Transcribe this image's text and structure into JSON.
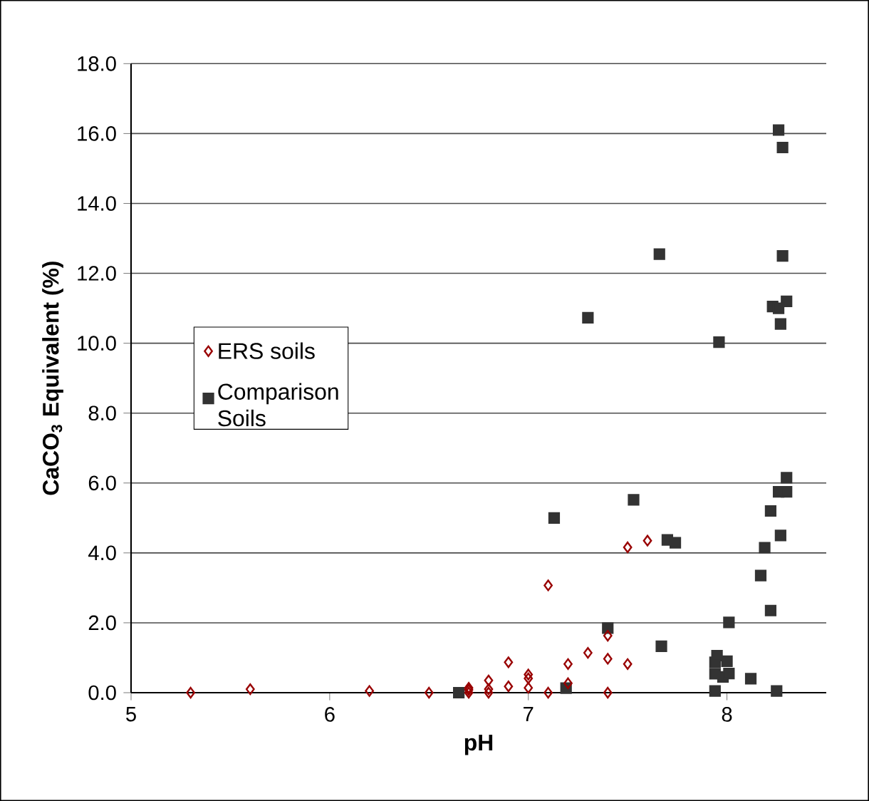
{
  "chart_data": {
    "type": "scatter",
    "xlabel": "pH",
    "ylabel": "CaCO$_{3}$ Equivalent (%)",
    "xlim": [
      5,
      8.5
    ],
    "xticks": [
      5,
      6,
      7,
      8
    ],
    "ylim": [
      0,
      18
    ],
    "yticks": [
      {
        "value": 0,
        "label": "0.0"
      },
      {
        "value": 2,
        "label": "2.0"
      },
      {
        "value": 4,
        "label": "4.0"
      },
      {
        "value": 6,
        "label": "6.0"
      },
      {
        "value": 8,
        "label": "8.0"
      },
      {
        "value": 10,
        "label": "10.0"
      },
      {
        "value": 12,
        "label": "12.0"
      },
      {
        "value": 14,
        "label": "14.0"
      },
      {
        "value": 16,
        "label": "16.0"
      },
      {
        "value": 18,
        "label": "18.0"
      }
    ],
    "grid": "y",
    "legend": "left",
    "series": [
      {
        "name": "ERS soils",
        "color": "#990000",
        "marker": "diamond",
        "x": [
          5.3,
          5.6,
          6.2,
          6.5,
          6.7,
          6.7,
          6.7,
          6.8,
          6.8,
          6.8,
          6.9,
          6.9,
          7.0,
          7.0,
          7.0,
          7.1,
          7.1,
          7.2,
          7.2,
          7.3,
          7.4,
          7.4,
          7.4,
          7.5,
          7.5,
          7.6
        ],
        "values": [
          0,
          0.1,
          0.05,
          0,
          0,
          0.14,
          0.08,
          0,
          0.1,
          0.35,
          0.18,
          0.87,
          0.14,
          0.41,
          0.52,
          0,
          3.07,
          0.27,
          0.82,
          1.14,
          0,
          0.97,
          1.63,
          0.82,
          4.16,
          4.35
        ]
      },
      {
        "name": "Comparison Soils",
        "color": "#333333",
        "marker": "square",
        "x": [
          6.65,
          7.13,
          7.19,
          7.3,
          7.4,
          7.53,
          7.66,
          7.67,
          7.7,
          7.74,
          7.94,
          7.94,
          7.94,
          7.95,
          7.98,
          8.0,
          8.01,
          8.01,
          7.96,
          8.12,
          8.17,
          8.19,
          8.22,
          8.22,
          8.25,
          8.26,
          8.26,
          8.27,
          8.27,
          8.28,
          8.28,
          8.3,
          8.3,
          8.3,
          8.23,
          8.26
        ],
        "values": [
          0,
          5.0,
          0.13,
          10.73,
          1.85,
          5.52,
          12.55,
          1.33,
          4.37,
          4.29,
          0.05,
          0.54,
          0.87,
          1.06,
          0.45,
          0.9,
          0.55,
          2.01,
          10.03,
          0.4,
          3.35,
          4.15,
          2.35,
          5.2,
          0.05,
          5.75,
          16.1,
          4.5,
          10.55,
          15.6,
          12.5,
          11.2,
          6.15,
          5.75,
          11.05,
          11.0
        ]
      }
    ]
  }
}
